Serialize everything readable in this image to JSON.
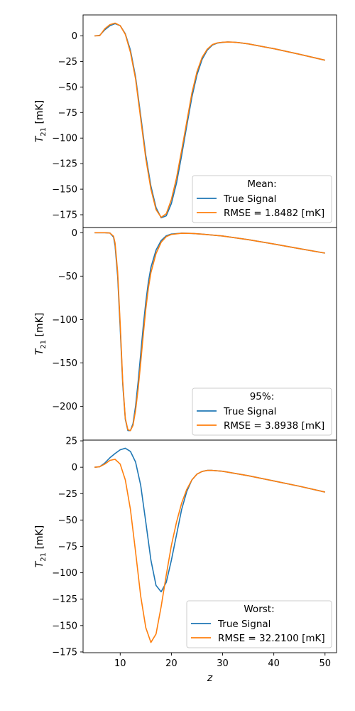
{
  "chart_data": [
    {
      "type": "line",
      "xlabel": "",
      "ylabel": "T_21 [mK]",
      "xlim": [
        2.75,
        52.25
      ],
      "ylim": [
        -187.5,
        20.5
      ],
      "xticks": [],
      "yticks": [
        0,
        -25,
        -50,
        -75,
        -100,
        -125,
        -150,
        -175
      ],
      "legend": {
        "title": "Mean:",
        "location": "lower right"
      },
      "series": [
        {
          "name": "True Signal",
          "color": "#1f77b4",
          "points": [
            [
              5,
              0
            ],
            [
              6,
              0.5
            ],
            [
              7,
              6
            ],
            [
              8,
              10
            ],
            [
              9,
              12
            ],
            [
              10,
              10
            ],
            [
              11,
              2
            ],
            [
              12,
              -14
            ],
            [
              13,
              -40
            ],
            [
              14,
              -78
            ],
            [
              15,
              -117
            ],
            [
              16,
              -147
            ],
            [
              17,
              -168
            ],
            [
              18,
              -178
            ],
            [
              19,
              -176
            ],
            [
              20,
              -164
            ],
            [
              21,
              -144
            ],
            [
              22,
              -117
            ],
            [
              23,
              -88
            ],
            [
              24,
              -60
            ],
            [
              25,
              -38
            ],
            [
              26,
              -23
            ],
            [
              27,
              -14
            ],
            [
              28,
              -9
            ],
            [
              29,
              -7
            ],
            [
              30,
              -6.3
            ],
            [
              31,
              -6
            ],
            [
              32,
              -6.1
            ],
            [
              33,
              -6.5
            ],
            [
              35,
              -7.8
            ],
            [
              40,
              -12.5
            ],
            [
              45,
              -18
            ],
            [
              50,
              -23.8
            ]
          ]
        },
        {
          "name": "RMSE = 1.8482 [mK]",
          "color": "#ff7f0e",
          "points": [
            [
              5,
              0
            ],
            [
              6,
              0.2
            ],
            [
              7,
              7
            ],
            [
              8,
              11
            ],
            [
              9,
              12.5
            ],
            [
              10,
              10
            ],
            [
              11,
              1.5
            ],
            [
              12,
              -16
            ],
            [
              13,
              -42
            ],
            [
              14,
              -81
            ],
            [
              15,
              -120
            ],
            [
              16,
              -150
            ],
            [
              17,
              -170
            ],
            [
              18,
              -177.5
            ],
            [
              19,
              -174
            ],
            [
              20,
              -160
            ],
            [
              21,
              -139
            ],
            [
              22,
              -112
            ],
            [
              23,
              -84
            ],
            [
              24,
              -56
            ],
            [
              25,
              -35
            ],
            [
              26,
              -21
            ],
            [
              27,
              -13
            ],
            [
              28,
              -8.5
            ],
            [
              29,
              -6.8
            ],
            [
              30,
              -6.2
            ],
            [
              31,
              -6
            ],
            [
              32,
              -6.1
            ],
            [
              33,
              -6.5
            ],
            [
              35,
              -7.8
            ],
            [
              40,
              -12.5
            ],
            [
              45,
              -18
            ],
            [
              50,
              -23.8
            ]
          ]
        }
      ]
    },
    {
      "type": "line",
      "xlabel": "",
      "ylabel": "T_21 [mK]",
      "xlim": [
        2.75,
        52.25
      ],
      "ylim": [
        -239,
        6
      ],
      "xticks": [],
      "yticks": [
        0,
        -50,
        -100,
        -150,
        -200
      ],
      "legend": {
        "title": "95%:",
        "location": "lower right"
      },
      "series": [
        {
          "name": "True Signal",
          "color": "#1f77b4",
          "points": [
            [
              5,
              0
            ],
            [
              6,
              0
            ],
            [
              7,
              0
            ],
            [
              8,
              -0.3
            ],
            [
              8.7,
              -5
            ],
            [
              9,
              -15
            ],
            [
              9.5,
              -50
            ],
            [
              10,
              -110
            ],
            [
              10.5,
              -175
            ],
            [
              11,
              -215
            ],
            [
              11.5,
              -228
            ],
            [
              12,
              -228
            ],
            [
              12.5,
              -220
            ],
            [
              13,
              -200
            ],
            [
              13.5,
              -172
            ],
            [
              14,
              -140
            ],
            [
              14.5,
              -108
            ],
            [
              15,
              -80
            ],
            [
              15.5,
              -57
            ],
            [
              16,
              -40
            ],
            [
              17,
              -20
            ],
            [
              18,
              -9
            ],
            [
              19,
              -3.5
            ],
            [
              20,
              -1.5
            ],
            [
              22,
              -0.5
            ],
            [
              24,
              -0.8
            ],
            [
              26,
              -1.6
            ],
            [
              30,
              -3.8
            ],
            [
              35,
              -8
            ],
            [
              40,
              -13
            ],
            [
              45,
              -18.3
            ],
            [
              50,
              -23.5
            ]
          ]
        },
        {
          "name": "RMSE = 3.8938 [mK]",
          "color": "#ff7f0e",
          "points": [
            [
              5,
              0
            ],
            [
              6,
              0
            ],
            [
              7,
              0
            ],
            [
              8,
              -0.4
            ],
            [
              8.7,
              -4
            ],
            [
              9,
              -12
            ],
            [
              9.5,
              -45
            ],
            [
              10,
              -105
            ],
            [
              10.5,
              -172
            ],
            [
              11,
              -214
            ],
            [
              11.5,
              -227
            ],
            [
              12,
              -228
            ],
            [
              12.5,
              -222
            ],
            [
              13,
              -205
            ],
            [
              13.5,
              -180
            ],
            [
              14,
              -150
            ],
            [
              14.5,
              -118
            ],
            [
              15,
              -88
            ],
            [
              15.5,
              -64
            ],
            [
              16,
              -46
            ],
            [
              17,
              -24
            ],
            [
              18,
              -11
            ],
            [
              19,
              -4.5
            ],
            [
              20,
              -2
            ],
            [
              22,
              -0.6
            ],
            [
              24,
              -0.8
            ],
            [
              26,
              -1.6
            ],
            [
              30,
              -3.8
            ],
            [
              35,
              -8
            ],
            [
              40,
              -13
            ],
            [
              45,
              -18.3
            ],
            [
              50,
              -23.5
            ]
          ]
        }
      ]
    },
    {
      "type": "line",
      "xlabel": "z",
      "ylabel": "T_21 [mK]",
      "xlim": [
        2.75,
        52.25
      ],
      "ylim": [
        -175.7,
        25.7
      ],
      "xticks": [
        10,
        20,
        30,
        40,
        50
      ],
      "yticks": [
        25,
        0,
        -25,
        -50,
        -75,
        -100,
        -125,
        -150,
        -175
      ],
      "legend": {
        "title": "Worst:",
        "location": "lower right"
      },
      "series": [
        {
          "name": "True Signal",
          "color": "#1f77b4",
          "points": [
            [
              5,
              0
            ],
            [
              6,
              0.5
            ],
            [
              7,
              4
            ],
            [
              8,
              9
            ],
            [
              9,
              13
            ],
            [
              10,
              16.5
            ],
            [
              11,
              18
            ],
            [
              12,
              15
            ],
            [
              13,
              5
            ],
            [
              14,
              -17
            ],
            [
              15,
              -52
            ],
            [
              16,
              -88
            ],
            [
              17,
              -112
            ],
            [
              18,
              -118
            ],
            [
              19,
              -109
            ],
            [
              20,
              -88
            ],
            [
              21,
              -64
            ],
            [
              22,
              -40
            ],
            [
              23,
              -23
            ],
            [
              24,
              -12
            ],
            [
              25,
              -6.5
            ],
            [
              26,
              -4
            ],
            [
              27,
              -3
            ],
            [
              28,
              -3
            ],
            [
              30,
              -3.8
            ],
            [
              35,
              -8
            ],
            [
              40,
              -13
            ],
            [
              45,
              -18
            ],
            [
              50,
              -23.5
            ]
          ]
        },
        {
          "name": "RMSE = 32.2100 [mK]",
          "color": "#ff7f0e",
          "points": [
            [
              5,
              0
            ],
            [
              6,
              0.5
            ],
            [
              7,
              3
            ],
            [
              8,
              6.5
            ],
            [
              9,
              7.5
            ],
            [
              10,
              3
            ],
            [
              11,
              -12
            ],
            [
              12,
              -40
            ],
            [
              13,
              -80
            ],
            [
              14,
              -122
            ],
            [
              15,
              -152
            ],
            [
              16,
              -166
            ],
            [
              17,
              -158
            ],
            [
              18,
              -132
            ],
            [
              19,
              -102
            ],
            [
              20,
              -74
            ],
            [
              21,
              -52
            ],
            [
              22,
              -34
            ],
            [
              23,
              -21
            ],
            [
              24,
              -12
            ],
            [
              25,
              -6.5
            ],
            [
              26,
              -4
            ],
            [
              27,
              -3
            ],
            [
              28,
              -3
            ],
            [
              30,
              -3.8
            ],
            [
              35,
              -8
            ],
            [
              40,
              -13
            ],
            [
              45,
              -18
            ],
            [
              50,
              -23.5
            ]
          ]
        }
      ]
    }
  ]
}
